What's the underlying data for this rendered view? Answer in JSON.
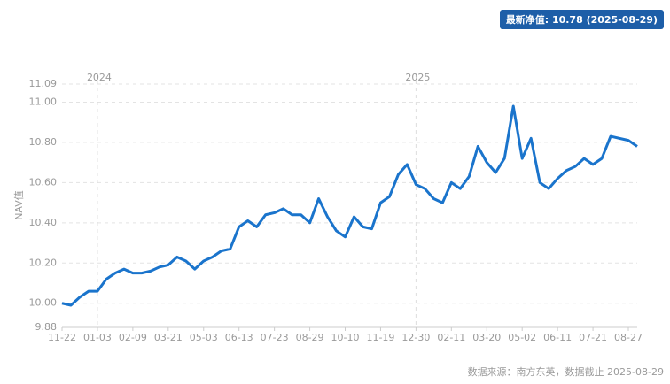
{
  "chart_data": {
    "type": "line",
    "badge": "最新净值: 10.78 (2025-08-29)",
    "y_label": "NAV值",
    "source": "数据来源：南方东英，数据截止 2025-08-29",
    "categories": [
      "11-22",
      null,
      null,
      null,
      "01-03",
      null,
      null,
      null,
      "02-09",
      null,
      null,
      null,
      "03-21",
      null,
      null,
      null,
      "05-03",
      null,
      null,
      null,
      "06-13",
      null,
      null,
      null,
      "07-23",
      null,
      null,
      null,
      "08-29",
      null,
      null,
      null,
      "10-10",
      null,
      null,
      null,
      "11-19",
      null,
      null,
      null,
      "12-30",
      null,
      null,
      null,
      "02-11",
      null,
      null,
      null,
      "03-20",
      null,
      null,
      null,
      "05-02",
      null,
      null,
      null,
      "06-11",
      null,
      null,
      null,
      "07-21",
      null,
      null,
      null,
      "08-27",
      null
    ],
    "series": [
      {
        "name": "NAV",
        "color": "#1a74cc",
        "values": [
          10.0,
          9.99,
          10.03,
          10.06,
          10.06,
          10.12,
          10.15,
          10.17,
          10.15,
          10.15,
          10.16,
          10.18,
          10.19,
          10.23,
          10.21,
          10.17,
          10.21,
          10.23,
          10.26,
          10.27,
          10.38,
          10.41,
          10.38,
          10.44,
          10.45,
          10.47,
          10.44,
          10.44,
          10.4,
          10.52,
          10.43,
          10.36,
          10.33,
          10.43,
          10.38,
          10.37,
          10.5,
          10.53,
          10.64,
          10.69,
          10.59,
          10.57,
          10.52,
          10.5,
          10.6,
          10.57,
          10.63,
          10.78,
          10.7,
          10.65,
          10.72,
          10.98,
          10.72,
          10.82,
          10.6,
          10.57,
          10.62,
          10.66,
          10.68,
          10.72,
          10.69,
          10.72,
          10.83,
          10.82,
          10.81,
          10.78
        ]
      }
    ],
    "year_markers": [
      {
        "label": "2024",
        "at": "01-03"
      },
      {
        "label": "2025",
        "at": "12-30"
      }
    ],
    "ylim": [
      9.88,
      11.09
    ],
    "yticks": [
      9.88,
      {
        "value": 10.0,
        "label": "10.00"
      },
      {
        "value": 10.2,
        "label": "10.20"
      },
      {
        "value": 10.4,
        "label": "10.40"
      },
      {
        "value": 10.6,
        "label": "10.60"
      },
      {
        "value": 10.8,
        "label": "10.80"
      },
      {
        "value": 11.0,
        "label": "11.00"
      },
      11.09
    ],
    "grid": true
  }
}
